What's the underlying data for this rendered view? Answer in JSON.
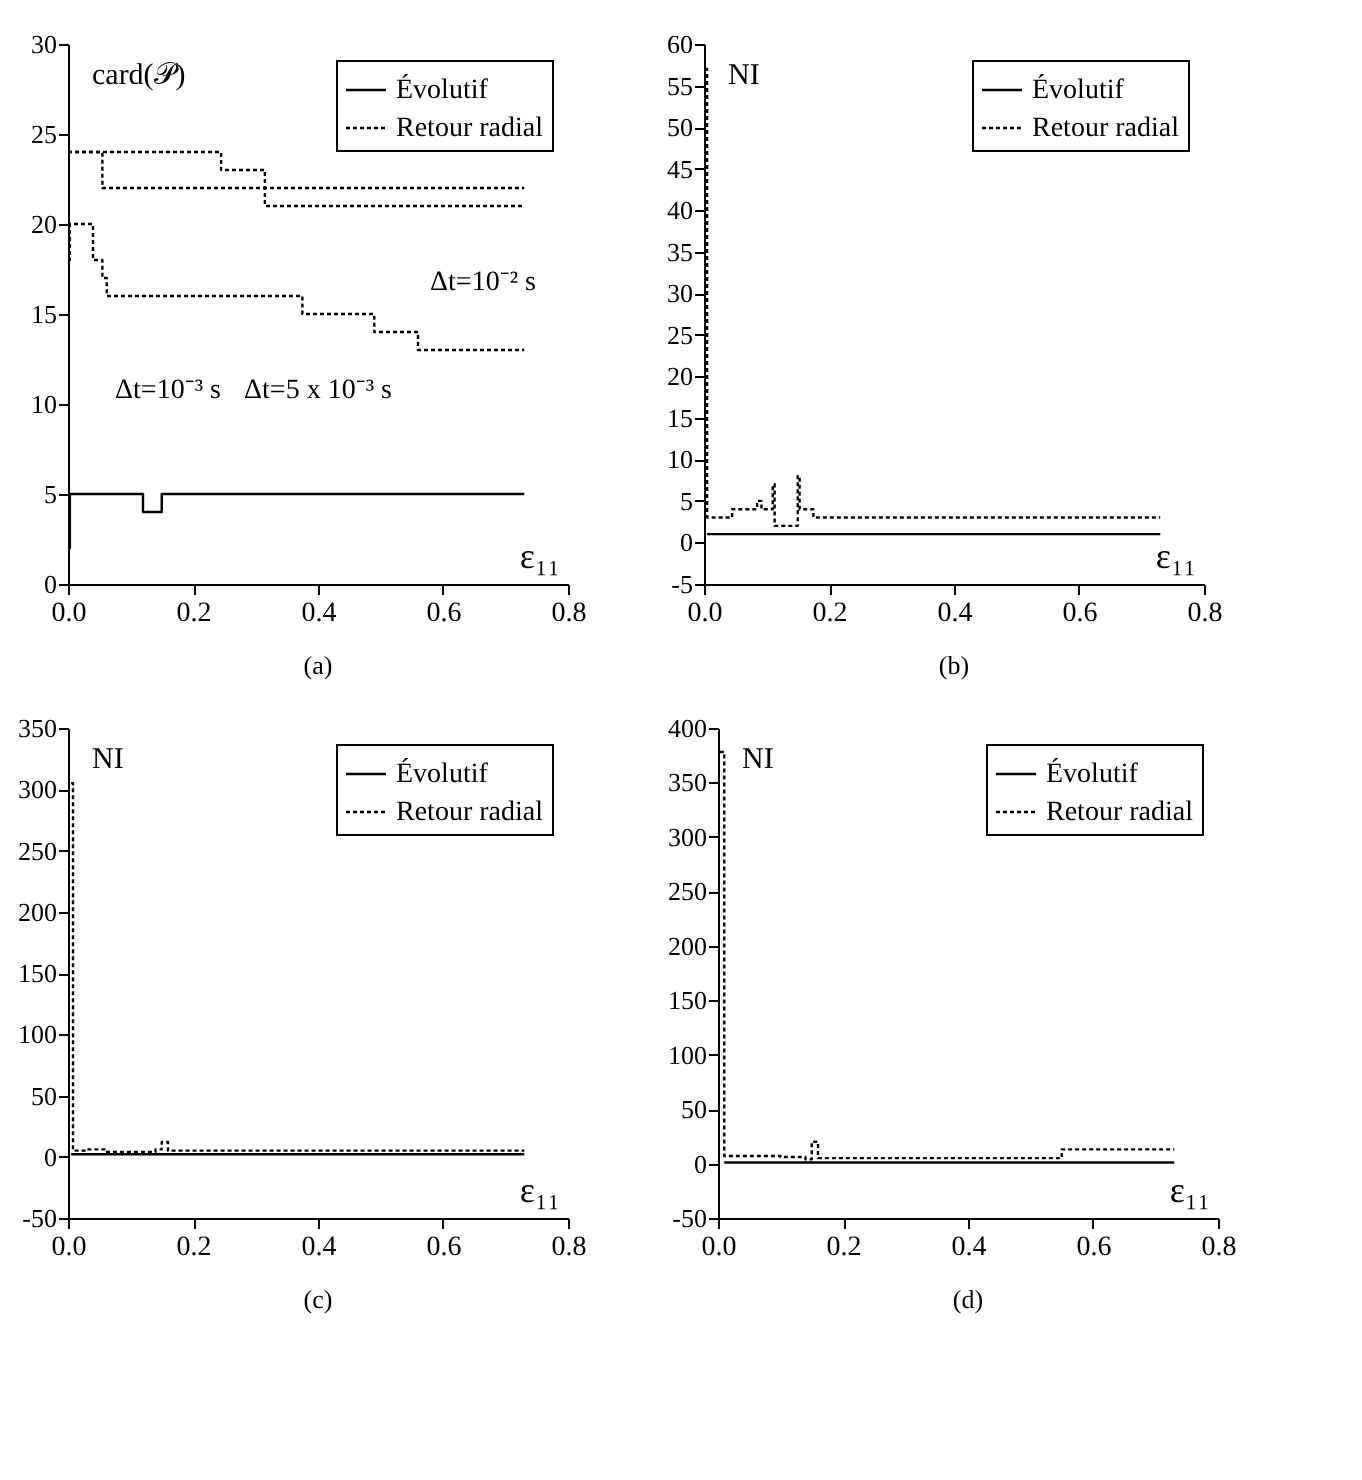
{
  "chart_data": [
    {
      "type": "step",
      "title": "(a)",
      "ylabel": "card(𝒫)",
      "xlabel": "ε₁₁",
      "xlim": [
        0,
        0.8
      ],
      "xticks": [
        {
          "value": 0,
          "label": "0.0"
        },
        {
          "value": 0.2,
          "label": "0.2"
        },
        {
          "value": 0.4,
          "label": "0.4"
        },
        {
          "value": 0.6,
          "label": "0.6"
        },
        {
          "value": 0.8,
          "label": "0.8"
        }
      ],
      "ylim": [
        0,
        30
      ],
      "yticks": [
        0,
        5,
        10,
        15,
        20,
        25,
        30
      ],
      "legend": "top right",
      "annotations": [
        "Δt=10⁻² s",
        "Δt=10⁻³ s",
        "Δt=5 x 10⁻³ s"
      ],
      "series": [
        {
          "name": "Évolutif",
          "color": "#000000",
          "line_style": "solid",
          "x": [
            0,
            0.003,
            0.12,
            0.15,
            0.73
          ],
          "values": [
            2,
            5,
            4,
            5,
            5
          ]
        },
        {
          "name": "Retour radial",
          "color": "#000000",
          "line_style": "dotted",
          "x": [
            0,
            0.055,
            0.73
          ],
          "values": [
            24,
            22,
            22
          ]
        },
        {
          "color": "#000000",
          "line_style": "dotted",
          "x": [
            0,
            0.245,
            0.315,
            0.73
          ],
          "values": [
            24,
            23,
            21,
            21
          ]
        },
        {
          "color": "#000000",
          "line_style": "dotted",
          "x": [
            0,
            0.003,
            0.04,
            0.055,
            0.062,
            0.375,
            0.49,
            0.56,
            0.73
          ],
          "values": [
            18,
            20,
            18,
            17,
            16,
            15,
            14,
            13,
            13
          ]
        }
      ]
    },
    {
      "type": "step",
      "title": "(b)",
      "ylabel": "NI",
      "xlabel": "ε₁₁",
      "xlim": [
        0,
        0.8
      ],
      "xticks": [
        {
          "value": 0,
          "label": "0.0"
        },
        {
          "value": 0.2,
          "label": "0.2"
        },
        {
          "value": 0.4,
          "label": "0.4"
        },
        {
          "value": 0.6,
          "label": "0.6"
        },
        {
          "value": 0.8,
          "label": "0.8"
        }
      ],
      "ylim": [
        -5,
        60
      ],
      "yticks": [
        -5,
        0,
        5,
        10,
        15,
        20,
        25,
        30,
        35,
        40,
        45,
        50,
        55,
        60
      ],
      "legend": "top right",
      "series": [
        {
          "name": "Évolutif",
          "color": "#000000",
          "line_style": "solid",
          "x": [
            0.005,
            0.73
          ],
          "values": [
            1,
            1
          ]
        },
        {
          "name": "Retour radial",
          "color": "#000000",
          "line_style": "dotted",
          "x": [
            0.002,
            0.005,
            0.045,
            0.085,
            0.092,
            0.11,
            0.113,
            0.15,
            0.153,
            0.175,
            0.73
          ],
          "values": [
            57,
            3,
            4,
            5,
            4,
            7,
            2,
            8,
            4,
            3,
            3
          ]
        }
      ]
    },
    {
      "type": "step",
      "title": "(c)",
      "ylabel": "NI",
      "xlabel": "ε₁₁",
      "xlim": [
        0,
        0.8
      ],
      "xticks": [
        {
          "value": 0,
          "label": "0.0"
        },
        {
          "value": 0.2,
          "label": "0.2"
        },
        {
          "value": 0.4,
          "label": "0.4"
        },
        {
          "value": 0.6,
          "label": "0.6"
        },
        {
          "value": 0.8,
          "label": "0.8"
        }
      ],
      "ylim": [
        -50,
        350
      ],
      "yticks": [
        -50,
        0,
        50,
        100,
        150,
        200,
        250,
        300,
        350
      ],
      "legend": "top right",
      "series": [
        {
          "name": "Évolutif",
          "color": "#000000",
          "line_style": "solid",
          "x": [
            0.005,
            0.73
          ],
          "values": [
            2,
            2
          ]
        },
        {
          "name": "Retour radial",
          "color": "#000000",
          "line_style": "dotted",
          "x": [
            0.005,
            0.008,
            0.03,
            0.06,
            0.14,
            0.15,
            0.16,
            0.73
          ],
          "values": [
            305,
            5,
            6,
            4,
            6,
            12,
            5,
            5
          ]
        }
      ]
    },
    {
      "type": "step",
      "title": "(d)",
      "ylabel": "NI",
      "xlabel": "ε₁₁",
      "xlim": [
        0,
        0.8
      ],
      "xticks": [
        {
          "value": 0,
          "label": "0.0"
        },
        {
          "value": 0.2,
          "label": "0.2"
        },
        {
          "value": 0.4,
          "label": "0.4"
        },
        {
          "value": 0.6,
          "label": "0.6"
        },
        {
          "value": 0.8,
          "label": "0.8"
        }
      ],
      "ylim": [
        -50,
        400
      ],
      "yticks": [
        -50,
        0,
        50,
        100,
        150,
        200,
        250,
        300,
        350,
        400
      ],
      "legend": "top right",
      "series": [
        {
          "name": "Évolutif",
          "color": "#000000",
          "line_style": "solid",
          "x": [
            0.01,
            0.73
          ],
          "values": [
            1,
            1
          ]
        },
        {
          "name": "Retour radial",
          "color": "#000000",
          "line_style": "dotted",
          "x": [
            0.003,
            0.01,
            0.1,
            0.14,
            0.15,
            0.16,
            0.54,
            0.55,
            0.73
          ],
          "values": [
            378,
            7,
            6,
            4,
            20,
            5,
            5,
            13,
            13
          ]
        }
      ]
    }
  ]
}
